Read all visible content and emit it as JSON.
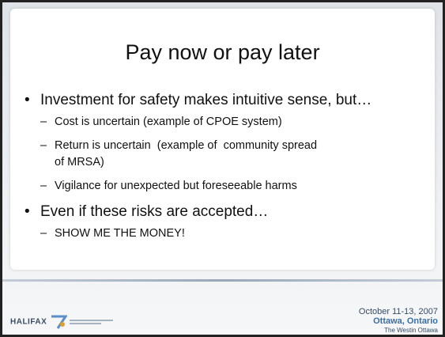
{
  "slide": {
    "title": "Pay now or pay later",
    "bullets": [
      {
        "text": "Investment for safety makes intuitive sense, but…",
        "sub": [
          "Cost is uncertain (example of CPOE system)",
          "Return is uncertain  (example of  community spread of MRSA)",
          "Vigilance for unexpected but foreseeable harms"
        ]
      },
      {
        "text": "Even if these risks are accepted…",
        "sub": [
          "SHOW ME THE MONEY!"
        ]
      }
    ]
  },
  "footer": {
    "logo": "HALIFAX",
    "dates": "October 11-13, 2007",
    "location": "Ottawa, Ontario",
    "venue": "The Westin Ottawa"
  }
}
